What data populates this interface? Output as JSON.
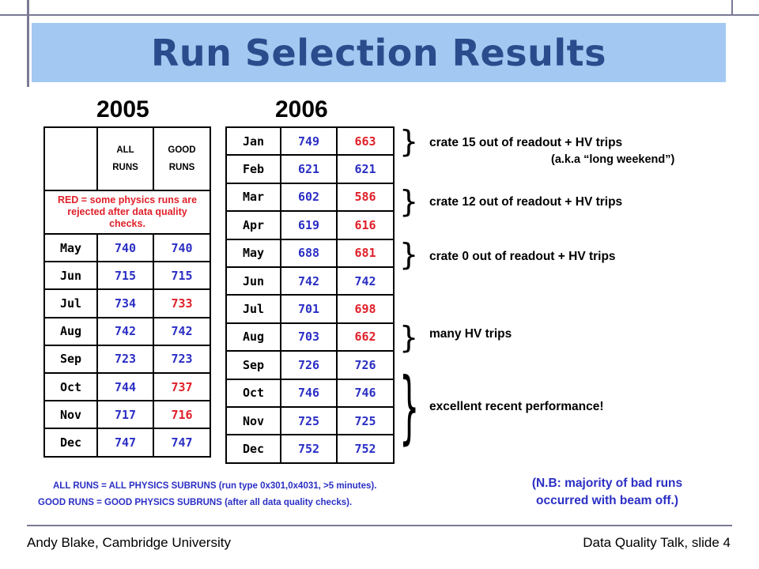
{
  "title": "Run Selection Results",
  "years": {
    "y2005": "2005",
    "y2006": "2006"
  },
  "table2005": {
    "header_all": "ALL RUNS",
    "header_good": "GOOD RUNS",
    "note": "RED = some physics runs are rejected after data quality checks.",
    "rows": [
      {
        "month": "May",
        "all": "740",
        "good": "740",
        "good_color": "blue"
      },
      {
        "month": "Jun",
        "all": "715",
        "good": "715",
        "good_color": "blue"
      },
      {
        "month": "Jul",
        "all": "734",
        "good": "733",
        "good_color": "red"
      },
      {
        "month": "Aug",
        "all": "742",
        "good": "742",
        "good_color": "blue"
      },
      {
        "month": "Sep",
        "all": "723",
        "good": "723",
        "good_color": "blue"
      },
      {
        "month": "Oct",
        "all": "744",
        "good": "737",
        "good_color": "red"
      },
      {
        "month": "Nov",
        "all": "717",
        "good": "716",
        "good_color": "red"
      },
      {
        "month": "Dec",
        "all": "747",
        "good": "747",
        "good_color": "blue"
      }
    ]
  },
  "table2006": {
    "rows": [
      {
        "month": "Jan",
        "all": "749",
        "good": "663",
        "good_color": "red"
      },
      {
        "month": "Feb",
        "all": "621",
        "good": "621",
        "good_color": "blue"
      },
      {
        "month": "Mar",
        "all": "602",
        "good": "586",
        "good_color": "red"
      },
      {
        "month": "Apr",
        "all": "619",
        "good": "616",
        "good_color": "red"
      },
      {
        "month": "May",
        "all": "688",
        "good": "681",
        "good_color": "red"
      },
      {
        "month": "Jun",
        "all": "742",
        "good": "742",
        "good_color": "blue"
      },
      {
        "month": "Jul",
        "all": "701",
        "good": "698",
        "good_color": "red"
      },
      {
        "month": "Aug",
        "all": "703",
        "good": "662",
        "good_color": "red"
      },
      {
        "month": "Sep",
        "all": "726",
        "good": "726",
        "good_color": "blue"
      },
      {
        "month": "Oct",
        "all": "746",
        "good": "746",
        "good_color": "blue"
      },
      {
        "month": "Nov",
        "all": "725",
        "good": "725",
        "good_color": "blue"
      },
      {
        "month": "Dec",
        "all": "752",
        "good": "752",
        "good_color": "blue"
      }
    ]
  },
  "annotations": {
    "a1": "crate 15 out of readout + HV trips",
    "a1_sub": "(a.k.a “long weekend”)",
    "a2": "crate 12 out of readout + HV trips",
    "a3": "crate 0 out of readout + HV trips",
    "a4": "many HV trips",
    "a5": "excellent recent performance!"
  },
  "definitions": {
    "all_runs": "ALL RUNS = ALL PHYSICS SUBRUNS (run type 0x301,0x4031, >5 minutes).",
    "good_runs": "GOOD RUNS = GOOD PHYSICS SUBRUNS (after all data quality checks)."
  },
  "nb_note": {
    "line1": "(N.B: majority of bad runs",
    "line2": "occurred with beam off.)"
  },
  "footer": {
    "left": "Andy Blake, Cambridge University",
    "right": "Data Quality Talk, slide 4"
  },
  "colors": {
    "title_band": "#a3c9f2",
    "title_text": "#2a4c8c",
    "blue": "#2b2fc4",
    "red": "#e0202a"
  }
}
